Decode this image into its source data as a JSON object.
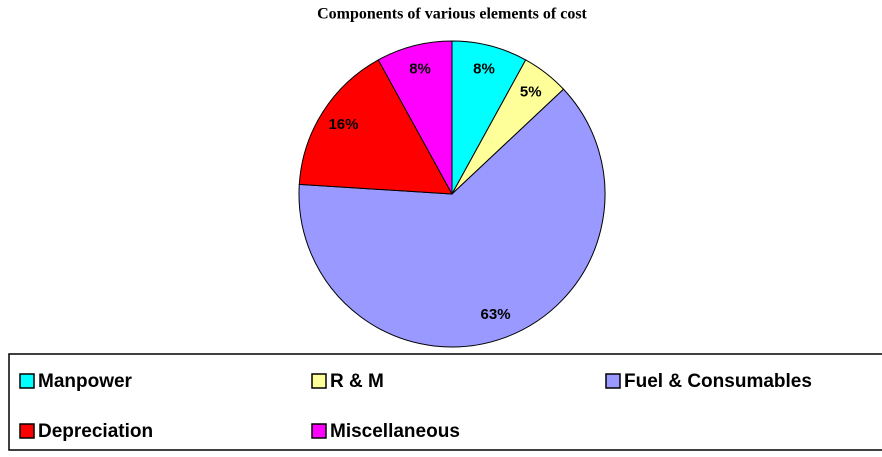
{
  "chart_data": {
    "type": "pie",
    "title": "Components of various elements of cost",
    "categories": [
      "Manpower",
      "R & M",
      "Fuel & Consumables",
      "Depreciation",
      "Miscellaneous"
    ],
    "values": [
      8,
      5,
      63,
      16,
      8
    ],
    "value_labels": [
      "8%",
      "5%",
      "63%",
      "16%",
      "8%"
    ],
    "colors": [
      "#00ffff",
      "#ffff99",
      "#9999ff",
      "#ff0000",
      "#ff00ff"
    ],
    "legend": "bottom"
  }
}
